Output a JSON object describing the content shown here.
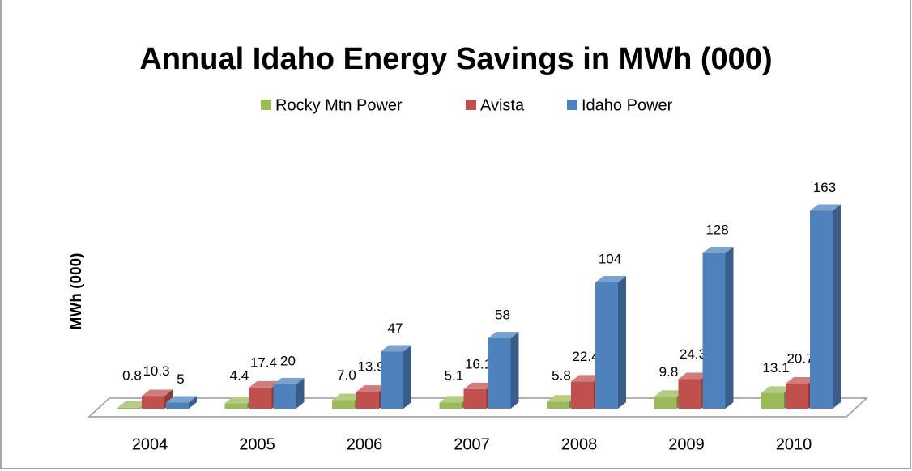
{
  "chart_data": {
    "type": "bar3d",
    "title": "Annual Idaho Energy Savings in MWh (000)",
    "y_label": "MWh (000)",
    "categories": [
      "2004",
      "2005",
      "2006",
      "2007",
      "2008",
      "2009",
      "2010"
    ],
    "legend": "top",
    "series": [
      {
        "name": "Rocky Mtn Power",
        "color": "#9bbb59",
        "values": [
          0.8,
          4.4,
          7.0,
          5.1,
          5.8,
          9.8,
          13.1
        ],
        "value_labels": [
          "0.8",
          "4.4",
          "7.0",
          "5.1",
          "5.8",
          "9.8",
          "13.1"
        ]
      },
      {
        "name": "Avista",
        "color": "#c0504d",
        "values": [
          10.3,
          17.4,
          13.9,
          16.1,
          22.4,
          24.3,
          20.7
        ],
        "value_labels": [
          "10.3",
          "17.4",
          "13.9",
          "16.1",
          "22.4",
          "24.3",
          "20.7"
        ]
      },
      {
        "name": "Idaho Power",
        "color": "#4f81bd",
        "values": [
          5,
          20,
          47,
          58,
          104,
          128,
          163
        ],
        "value_labels": [
          "5",
          "20",
          "47",
          "58",
          "104",
          "128",
          "163"
        ]
      }
    ]
  }
}
